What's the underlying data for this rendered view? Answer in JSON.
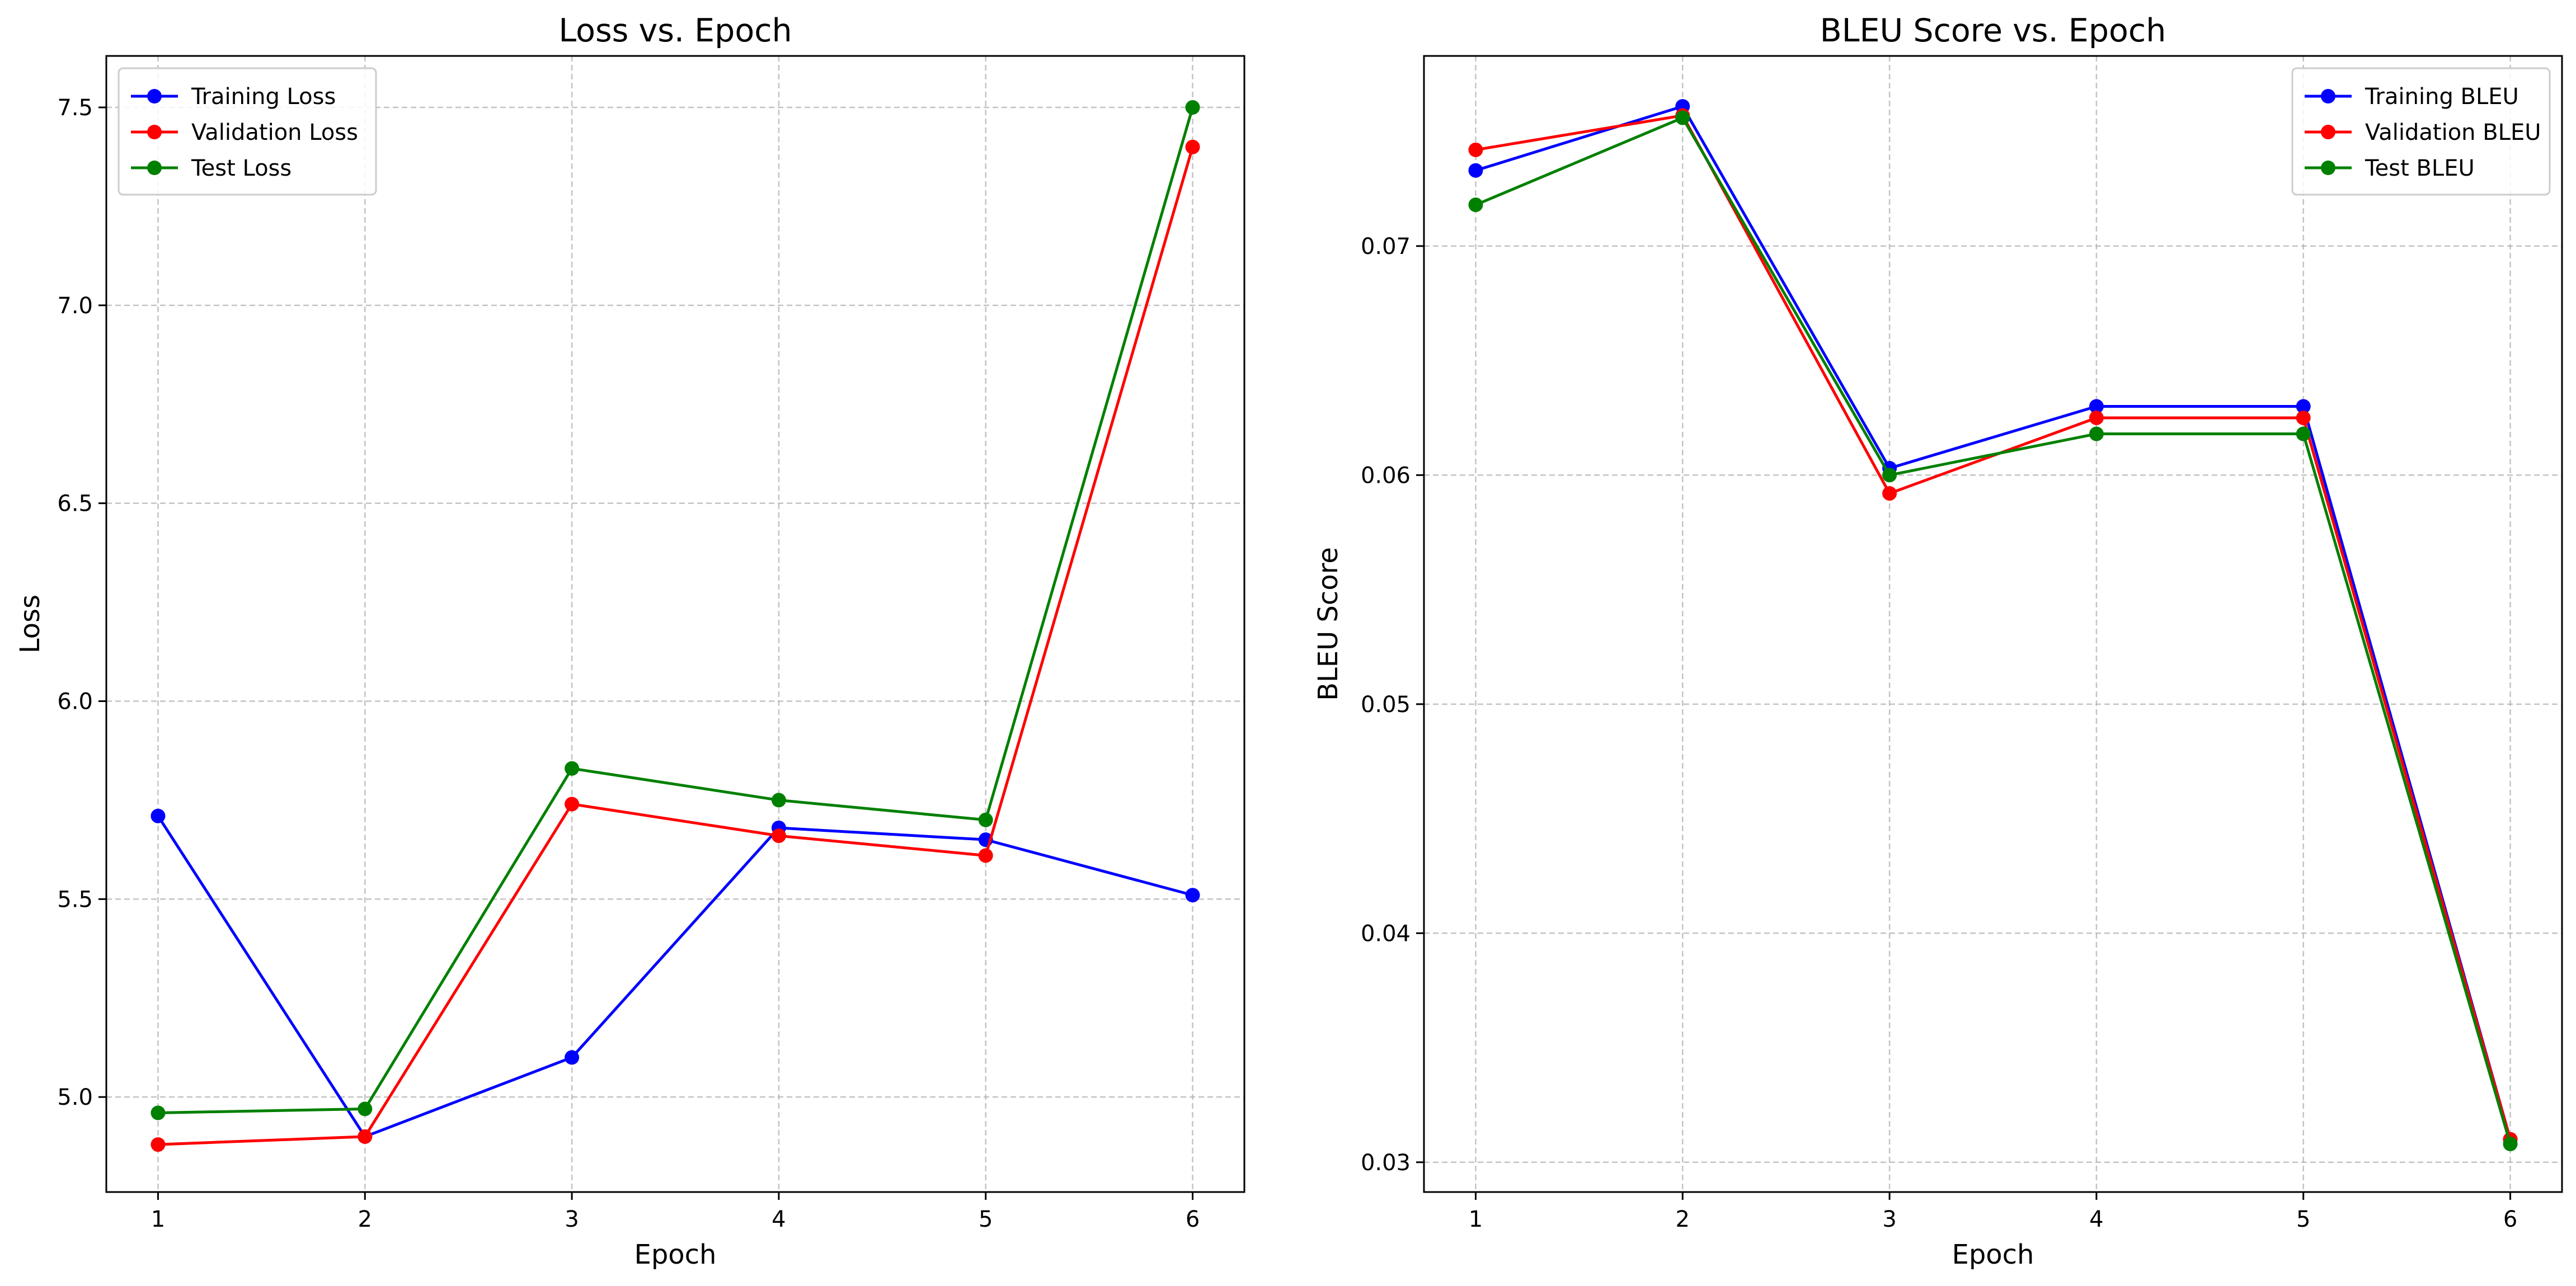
{
  "chart_data": [
    {
      "type": "line",
      "title": "Loss vs. Epoch",
      "xlabel": "Epoch",
      "ylabel": "Loss",
      "x": [
        1,
        2,
        3,
        4,
        5,
        6
      ],
      "xticks": [
        "1",
        "2",
        "3",
        "4",
        "5",
        "6"
      ],
      "xlim": [
        0.75,
        6.25
      ],
      "ylim": [
        4.76,
        7.63
      ],
      "yticks": [
        "5.0",
        "5.5",
        "6.0",
        "6.5",
        "7.0",
        "7.5"
      ],
      "ytick_values": [
        5.0,
        5.5,
        6.0,
        6.5,
        7.0,
        7.5
      ],
      "grid": true,
      "legend_position": "top-left",
      "series": [
        {
          "name": "Training Loss",
          "color": "#0000ff",
          "values": [
            5.71,
            4.9,
            5.1,
            5.68,
            5.65,
            5.51
          ]
        },
        {
          "name": "Validation Loss",
          "color": "#ff0000",
          "values": [
            4.88,
            4.9,
            5.74,
            5.66,
            5.61,
            7.4
          ]
        },
        {
          "name": "Test Loss",
          "color": "#008000",
          "values": [
            4.96,
            4.97,
            5.83,
            5.75,
            5.7,
            7.5
          ]
        }
      ]
    },
    {
      "type": "line",
      "title": "BLEU Score vs. Epoch",
      "xlabel": "Epoch",
      "ylabel": "BLEU Score",
      "x": [
        1,
        2,
        3,
        4,
        5,
        6
      ],
      "xticks": [
        "1",
        "2",
        "3",
        "4",
        "5",
        "6"
      ],
      "xlim": [
        0.75,
        6.25
      ],
      "ylim": [
        0.0287,
        0.0783
      ],
      "yticks": [
        "0.03",
        "0.04",
        "0.05",
        "0.06",
        "0.07"
      ],
      "ytick_values": [
        0.03,
        0.04,
        0.05,
        0.06,
        0.07
      ],
      "grid": true,
      "legend_position": "top-right",
      "series": [
        {
          "name": "Training BLEU",
          "color": "#0000ff",
          "values": [
            0.0733,
            0.0761,
            0.0603,
            0.063,
            0.063,
            0.031
          ]
        },
        {
          "name": "Validation BLEU",
          "color": "#ff0000",
          "values": [
            0.0742,
            0.0757,
            0.0592,
            0.0625,
            0.0625,
            0.031
          ]
        },
        {
          "name": "Test BLEU",
          "color": "#008000",
          "values": [
            0.0718,
            0.0756,
            0.06,
            0.0618,
            0.0618,
            0.0308
          ]
        }
      ]
    }
  ]
}
